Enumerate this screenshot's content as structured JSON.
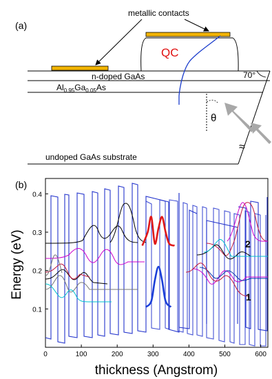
{
  "panel_a": {
    "label": "(a)",
    "contacts_label": "metallic contacts",
    "qc_label": "QC",
    "n_doped": "n-doped GaAs",
    "algaas": {
      "p1": "Al",
      "s1": "0.95",
      "p2": "Ga",
      "s2": "0.05",
      "p3": "As"
    },
    "angle_label": "70°",
    "theta": "θ",
    "substrate": "undoped GaAs substrate",
    "break_mark": "≈",
    "colors": {
      "contact": "#f2b400",
      "qc": "#e01010",
      "wave": "#1a3ccc",
      "arrow": "#a8a8a8"
    }
  },
  "panel_b": {
    "label": "(b)",
    "xlabel": "thickness (Angstrom)",
    "ylabel": "Energy (eV)",
    "x_ticks": [
      "0",
      "100",
      "200",
      "300",
      "400",
      "500",
      "600"
    ],
    "y_ticks": [
      "0.1",
      "0.2",
      "0.3",
      "0.4"
    ],
    "state_labels": [
      "2",
      "1"
    ],
    "colors": {
      "band": "#2233cc",
      "state1": "#1b3fd8",
      "state2": "#e01818"
    }
  },
  "chart_data": {
    "type": "line",
    "xlabel": "thickness (Angstrom)",
    "ylabel": "Energy (eV)",
    "xlim": [
      0,
      620
    ],
    "ylim": [
      0,
      0.44
    ],
    "x_ticks": [
      0,
      100,
      200,
      300,
      400,
      500,
      600
    ],
    "y_ticks": [
      0.1,
      0.2,
      0.3,
      0.4
    ],
    "series": [
      {
        "name": "1",
        "x": [
          280,
          295,
          305,
          315,
          325,
          335,
          350
        ],
        "y": [
          0.105,
          0.12,
          0.175,
          0.21,
          0.175,
          0.12,
          0.105
        ]
      },
      {
        "name": "2",
        "x": [
          270,
          285,
          295,
          305,
          315,
          325,
          335,
          345,
          360
        ],
        "y": [
          0.265,
          0.3,
          0.34,
          0.27,
          0.31,
          0.34,
          0.3,
          0.27,
          0.265
        ]
      }
    ]
  }
}
